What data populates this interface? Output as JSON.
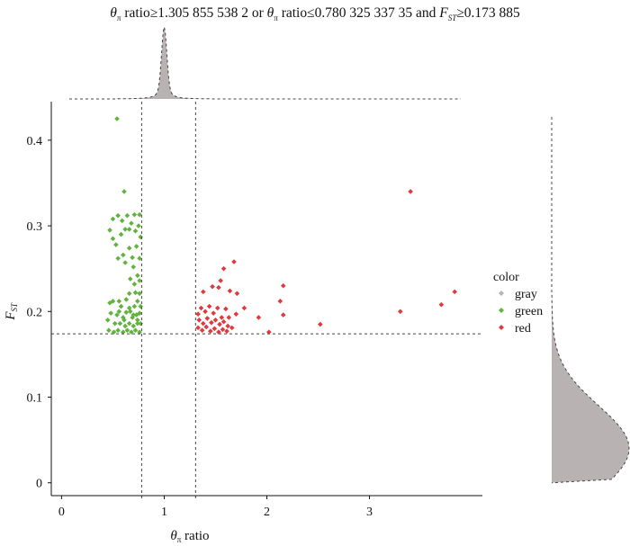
{
  "title": {
    "theta": "θ",
    "pi": "π",
    "part1": " ratio≥1.305 855 538 2 or ",
    "part2": " ratio≤0.780 325 337 35 and ",
    "F": "F",
    "ST": "ST",
    "part3": "≥0.173 885"
  },
  "chart_data": {
    "type": "scatter",
    "xlabel": "θπ ratio",
    "ylabel": "FST",
    "xlim": [
      -0.1,
      4.1
    ],
    "ylim": [
      -0.015,
      0.445
    ],
    "x_ticks": [
      0,
      1,
      2,
      3
    ],
    "y_ticks": [
      0,
      0.1,
      0.2,
      0.3,
      0.4
    ],
    "thresholds": {
      "x_low": 0.780325,
      "x_high": 1.305856,
      "y": 0.173885
    },
    "marginal_x_peak": 1.0,
    "marginal_y_peak": 0.04,
    "legend": {
      "title": "color",
      "position": "right",
      "entries": [
        "gray",
        "green",
        "red"
      ]
    },
    "colors": {
      "gray": "#b9b2b2",
      "green": "#62b33e",
      "red": "#e03a3e"
    },
    "series": [
      {
        "name": "green",
        "points": [
          [
            0.54,
            0.425
          ],
          [
            0.61,
            0.34
          ],
          [
            0.5,
            0.308
          ],
          [
            0.55,
            0.312
          ],
          [
            0.59,
            0.306
          ],
          [
            0.64,
            0.312
          ],
          [
            0.71,
            0.313
          ],
          [
            0.76,
            0.313
          ],
          [
            0.47,
            0.295
          ],
          [
            0.5,
            0.285
          ],
          [
            0.53,
            0.278
          ],
          [
            0.58,
            0.29
          ],
          [
            0.62,
            0.296
          ],
          [
            0.66,
            0.296
          ],
          [
            0.68,
            0.303
          ],
          [
            0.72,
            0.294
          ],
          [
            0.75,
            0.3
          ],
          [
            0.77,
            0.287
          ],
          [
            0.73,
            0.276
          ],
          [
            0.66,
            0.274
          ],
          [
            0.69,
            0.263
          ],
          [
            0.6,
            0.266
          ],
          [
            0.55,
            0.262
          ],
          [
            0.62,
            0.257
          ],
          [
            0.7,
            0.252
          ],
          [
            0.76,
            0.262
          ],
          [
            0.74,
            0.242
          ],
          [
            0.67,
            0.238
          ],
          [
            0.71,
            0.232
          ],
          [
            0.76,
            0.236
          ],
          [
            0.72,
            0.222
          ],
          [
            0.66,
            0.221
          ],
          [
            0.76,
            0.221
          ],
          [
            0.63,
            0.214
          ],
          [
            0.56,
            0.212
          ],
          [
            0.5,
            0.212
          ],
          [
            0.47,
            0.21
          ],
          [
            0.58,
            0.206
          ],
          [
            0.66,
            0.204
          ],
          [
            0.71,
            0.206
          ],
          [
            0.74,
            0.212
          ],
          [
            0.77,
            0.206
          ],
          [
            0.48,
            0.198
          ],
          [
            0.54,
            0.196
          ],
          [
            0.6,
            0.193
          ],
          [
            0.63,
            0.199
          ],
          [
            0.69,
            0.193
          ],
          [
            0.73,
            0.196
          ],
          [
            0.76,
            0.198
          ],
          [
            0.45,
            0.19
          ],
          [
            0.52,
            0.186
          ],
          [
            0.57,
            0.186
          ],
          [
            0.62,
            0.183
          ],
          [
            0.66,
            0.186
          ],
          [
            0.7,
            0.183
          ],
          [
            0.74,
            0.186
          ],
          [
            0.77,
            0.186
          ],
          [
            0.46,
            0.178
          ],
          [
            0.51,
            0.176
          ],
          [
            0.55,
            0.178
          ],
          [
            0.6,
            0.176
          ],
          [
            0.64,
            0.178
          ],
          [
            0.68,
            0.176
          ],
          [
            0.72,
            0.178
          ],
          [
            0.76,
            0.176
          ],
          [
            0.74,
            0.19
          ],
          [
            0.67,
            0.2
          ],
          [
            0.56,
            0.2
          ],
          [
            0.61,
            0.19
          ],
          [
            0.7,
            0.196
          ]
        ]
      },
      {
        "name": "red",
        "points": [
          [
            3.4,
            0.34
          ],
          [
            3.83,
            0.223
          ],
          [
            3.7,
            0.208
          ],
          [
            3.3,
            0.2
          ],
          [
            2.52,
            0.185
          ],
          [
            2.13,
            0.212
          ],
          [
            2.16,
            0.196
          ],
          [
            2.02,
            0.176
          ],
          [
            1.92,
            0.193
          ],
          [
            1.78,
            0.204
          ],
          [
            1.7,
            0.197
          ],
          [
            1.68,
            0.258
          ],
          [
            1.58,
            0.25
          ],
          [
            1.47,
            0.229
          ],
          [
            1.53,
            0.228
          ],
          [
            1.38,
            0.223
          ],
          [
            1.64,
            0.224
          ],
          [
            1.71,
            0.221
          ],
          [
            1.33,
            0.197
          ],
          [
            1.36,
            0.204
          ],
          [
            1.4,
            0.2
          ],
          [
            1.44,
            0.206
          ],
          [
            1.48,
            0.198
          ],
          [
            1.52,
            0.204
          ],
          [
            1.56,
            0.193
          ],
          [
            1.6,
            0.203
          ],
          [
            1.63,
            0.193
          ],
          [
            1.34,
            0.19
          ],
          [
            1.38,
            0.186
          ],
          [
            1.42,
            0.192
          ],
          [
            1.46,
            0.187
          ],
          [
            1.5,
            0.19
          ],
          [
            1.54,
            0.185
          ],
          [
            1.58,
            0.188
          ],
          [
            1.62,
            0.183
          ],
          [
            1.33,
            0.181
          ],
          [
            1.37,
            0.178
          ],
          [
            1.41,
            0.182
          ],
          [
            1.45,
            0.177
          ],
          [
            1.49,
            0.18
          ],
          [
            1.53,
            0.176
          ],
          [
            1.57,
            0.179
          ],
          [
            1.61,
            0.177
          ],
          [
            1.66,
            0.181
          ],
          [
            1.55,
            0.236
          ],
          [
            2.16,
            0.23
          ]
        ]
      }
    ]
  }
}
